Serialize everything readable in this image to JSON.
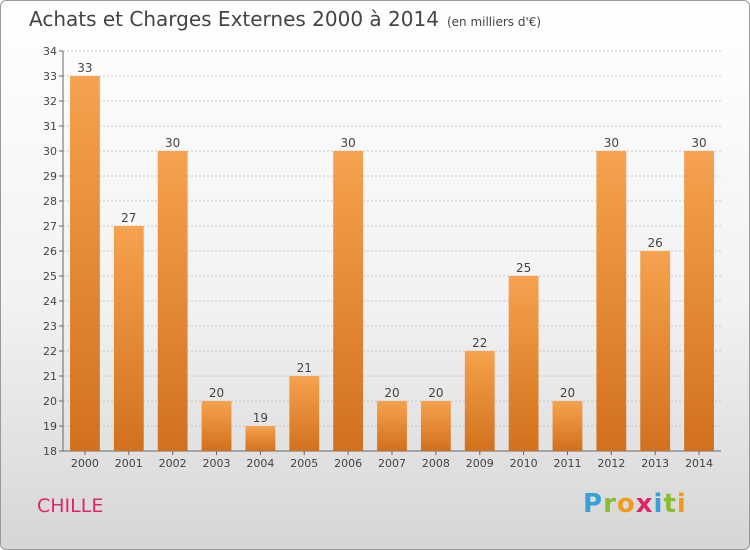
{
  "header": {
    "title": "Achats et Charges Externes 2000 à 2014",
    "unit": "(en milliers d'€)"
  },
  "footer": {
    "city": "CHILLE",
    "logo": [
      "P",
      "r",
      "o",
      "x",
      "i",
      "t",
      "i"
    ],
    "logo_colors": [
      "#3aa1d8",
      "#8cbd2e",
      "#f39a1e",
      "#e0256d",
      "#3aa1d8",
      "#8cbd2e",
      "#f39a1e"
    ]
  },
  "colors": {
    "bar_top": "#f6a24e",
    "bar_bottom": "#d2711d",
    "title": "#444444",
    "city": "#e0256d"
  },
  "chart_data": {
    "type": "bar",
    "title": "Achats et Charges Externes 2000 à 2014",
    "subtitle": "(en milliers d'€)",
    "xlabel": "",
    "ylabel": "",
    "categories": [
      "2000",
      "2001",
      "2002",
      "2003",
      "2004",
      "2005",
      "2006",
      "2007",
      "2008",
      "2009",
      "2010",
      "2011",
      "2012",
      "2013",
      "2014"
    ],
    "values": [
      33,
      27,
      30,
      20,
      19,
      21,
      30,
      20,
      20,
      22,
      25,
      20,
      30,
      26,
      30
    ],
    "ylim": [
      18,
      34
    ],
    "yticks": [
      18,
      19,
      20,
      21,
      22,
      23,
      24,
      25,
      26,
      27,
      28,
      29,
      30,
      31,
      32,
      33,
      34
    ],
    "grid": true,
    "legend": "none"
  }
}
